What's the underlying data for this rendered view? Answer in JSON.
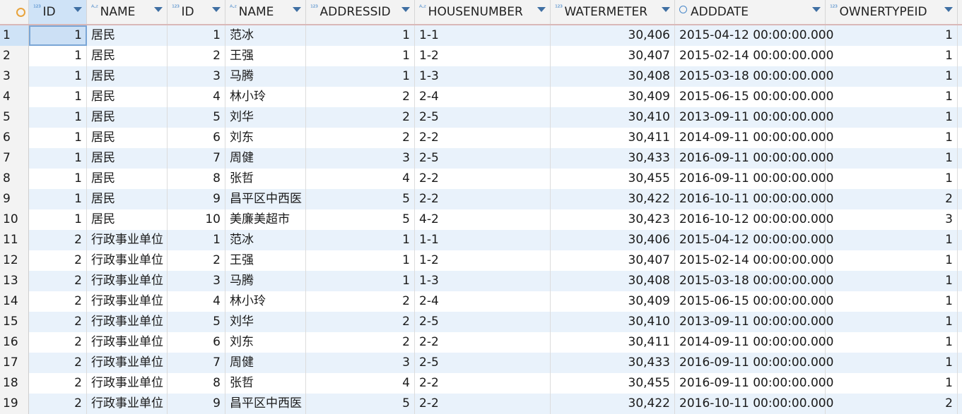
{
  "columns": [
    {
      "label": "ID",
      "type": "123"
    },
    {
      "label": "NAME",
      "type": "A-Z"
    },
    {
      "label": "ID",
      "type": "123"
    },
    {
      "label": "NAME",
      "type": "A-Z"
    },
    {
      "label": "ADDRESSID",
      "type": "123"
    },
    {
      "label": "HOUSENUMBER",
      "type": "A-Z"
    },
    {
      "label": "WATERMETER",
      "type": "123"
    },
    {
      "label": "ADDDATE",
      "type": "clock"
    },
    {
      "label": "OWNERTYPEID",
      "type": "123"
    }
  ],
  "rows": [
    [
      "1",
      "1",
      "居民",
      "1",
      "范冰",
      "1",
      "1-1",
      "30,406",
      "2015-04-12 00:00:00.000",
      "1"
    ],
    [
      "2",
      "1",
      "居民",
      "2",
      "王强",
      "1",
      "1-2",
      "30,407",
      "2015-02-14 00:00:00.000",
      "1"
    ],
    [
      "3",
      "1",
      "居民",
      "3",
      "马腾",
      "1",
      "1-3",
      "30,408",
      "2015-03-18 00:00:00.000",
      "1"
    ],
    [
      "4",
      "1",
      "居民",
      "4",
      "林小玲",
      "2",
      "2-4",
      "30,409",
      "2015-06-15 00:00:00.000",
      "1"
    ],
    [
      "5",
      "1",
      "居民",
      "5",
      "刘华",
      "2",
      "2-5",
      "30,410",
      "2013-09-11 00:00:00.000",
      "1"
    ],
    [
      "6",
      "1",
      "居民",
      "6",
      "刘东",
      "2",
      "2-2",
      "30,411",
      "2014-09-11 00:00:00.000",
      "1"
    ],
    [
      "7",
      "1",
      "居民",
      "7",
      "周健",
      "3",
      "2-5",
      "30,433",
      "2016-09-11 00:00:00.000",
      "1"
    ],
    [
      "8",
      "1",
      "居民",
      "8",
      "张哲",
      "4",
      "2-2",
      "30,455",
      "2016-09-11 00:00:00.000",
      "1"
    ],
    [
      "9",
      "1",
      "居民",
      "9",
      "昌平区中西医",
      "5",
      "2-2",
      "30,422",
      "2016-10-11 00:00:00.000",
      "2"
    ],
    [
      "10",
      "1",
      "居民",
      "10",
      "美廉美超市",
      "5",
      "4-2",
      "30,423",
      "2016-10-12 00:00:00.000",
      "3"
    ],
    [
      "11",
      "2",
      "行政事业单位",
      "1",
      "范冰",
      "1",
      "1-1",
      "30,406",
      "2015-04-12 00:00:00.000",
      "1"
    ],
    [
      "12",
      "2",
      "行政事业单位",
      "2",
      "王强",
      "1",
      "1-2",
      "30,407",
      "2015-02-14 00:00:00.000",
      "1"
    ],
    [
      "13",
      "2",
      "行政事业单位",
      "3",
      "马腾",
      "1",
      "1-3",
      "30,408",
      "2015-03-18 00:00:00.000",
      "1"
    ],
    [
      "14",
      "2",
      "行政事业单位",
      "4",
      "林小玲",
      "2",
      "2-4",
      "30,409",
      "2015-06-15 00:00:00.000",
      "1"
    ],
    [
      "15",
      "2",
      "行政事业单位",
      "5",
      "刘华",
      "2",
      "2-5",
      "30,410",
      "2013-09-11 00:00:00.000",
      "1"
    ],
    [
      "16",
      "2",
      "行政事业单位",
      "6",
      "刘东",
      "2",
      "2-2",
      "30,411",
      "2014-09-11 00:00:00.000",
      "1"
    ],
    [
      "17",
      "2",
      "行政事业单位",
      "7",
      "周健",
      "3",
      "2-5",
      "30,433",
      "2016-09-11 00:00:00.000",
      "1"
    ],
    [
      "18",
      "2",
      "行政事业单位",
      "8",
      "张哲",
      "4",
      "2-2",
      "30,455",
      "2016-09-11 00:00:00.000",
      "1"
    ],
    [
      "19",
      "2",
      "行政事业单位",
      "9",
      "昌平区中西医",
      "5",
      "2-2",
      "30,422",
      "2016-10-11 00:00:00.000",
      "2"
    ]
  ],
  "colors": {
    "header_bg": "#f3f3f3",
    "row_alt_bg": "#e9f2fb",
    "selection_bg": "#cfe3f7",
    "type_icon": "#4a88c9",
    "sort_icon": "#3f6fa3",
    "corner_icon": "#e8a33c"
  }
}
